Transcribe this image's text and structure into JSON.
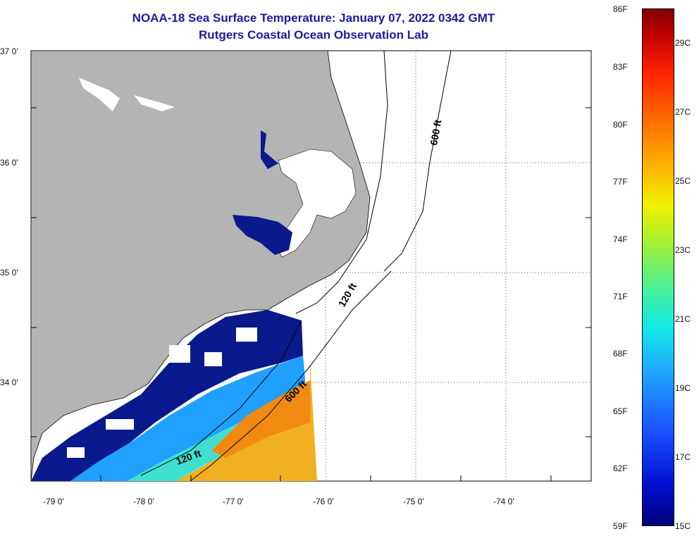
{
  "title": {
    "line1": "NOAA-18 Sea Surface Temperature:  January 07, 2022 0342 GMT",
    "line2": "Rutgers Coastal Ocean Observation Lab"
  },
  "map": {
    "latitude_labels": [
      "37 0'",
      "36 0'",
      "35 0'",
      "34 0'"
    ],
    "longitude_labels": [
      "-79 0'",
      "-78 0'",
      "-77 0'",
      "-76 0'",
      "-75 0'",
      "-74 0'"
    ],
    "isobath_labels": [
      "600 ft",
      "120 ft",
      "600 ft",
      "120 ft"
    ],
    "colors": {
      "land": "#b4b4b4",
      "cloud_mask": "#ffffff",
      "border": "#000000"
    }
  },
  "colorbar": {
    "fahrenheit_labels": [
      "86F",
      "83F",
      "80F",
      "77F",
      "74F",
      "71F",
      "68F",
      "65F",
      "62F",
      "59F"
    ],
    "celsius_labels": [
      "29C",
      "27C",
      "25C",
      "23C",
      "21C",
      "19C",
      "17C",
      "15C"
    ],
    "range_c": [
      15,
      30
    ]
  }
}
